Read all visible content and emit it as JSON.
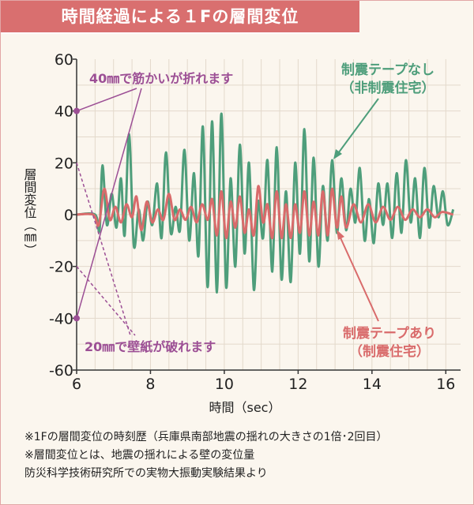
{
  "header": {
    "title": "時間経過による１Fの層間変位"
  },
  "chart_data": {
    "type": "line",
    "title": "時間経過による１Fの層間変位",
    "xlabel": "時間（sec）",
    "ylabel": "層間変位（㎜）",
    "xlim": [
      6,
      16.4
    ],
    "ylim": [
      -60,
      60
    ],
    "x_ticks": [
      "6",
      "8",
      "10",
      "12",
      "14",
      "16"
    ],
    "y_ticks": [
      "60",
      "40",
      "20",
      "0",
      "-20",
      "-40",
      "-60"
    ],
    "grid": true,
    "series": [
      {
        "name": "制震テープなし（非制震住宅）",
        "color": "#4e9e7b",
        "x": [
          6.0,
          6.5,
          6.62,
          6.7,
          6.82,
          6.95,
          7.08,
          7.2,
          7.3,
          7.42,
          7.55,
          7.68,
          7.8,
          7.92,
          8.05,
          8.18,
          8.3,
          8.42,
          8.55,
          8.68,
          8.8,
          8.92,
          9.05,
          9.18,
          9.3,
          9.42,
          9.55,
          9.67,
          9.8,
          9.92,
          10.05,
          10.17,
          10.3,
          10.42,
          10.55,
          10.67,
          10.8,
          10.92,
          11.05,
          11.17,
          11.3,
          11.42,
          11.55,
          11.67,
          11.8,
          11.92,
          12.05,
          12.17,
          12.3,
          12.42,
          12.55,
          12.67,
          12.8,
          12.92,
          13.05,
          13.17,
          13.3,
          13.42,
          13.55,
          13.67,
          13.8,
          13.92,
          14.05,
          14.17,
          14.3,
          14.42,
          14.55,
          14.67,
          14.8,
          14.92,
          15.05,
          15.17,
          15.3,
          15.42,
          15.55,
          15.67,
          15.8,
          15.92,
          16.05,
          16.2
        ],
        "y": [
          0,
          0,
          -6,
          19,
          -4,
          8,
          -5,
          14,
          -8,
          31,
          -12,
          2,
          -10,
          5,
          -4,
          12,
          -9,
          24,
          -7,
          3,
          -6,
          25,
          -10,
          16,
          -16,
          34,
          -28,
          36,
          -30,
          39,
          -28,
          14,
          -20,
          27,
          -15,
          20,
          -29,
          5,
          -9,
          21,
          -22,
          26,
          -25,
          9,
          -26,
          20,
          -15,
          33,
          -18,
          22,
          -20,
          11,
          -10,
          21,
          -7,
          14,
          -6,
          10,
          -3,
          18,
          -10,
          6,
          -11,
          12,
          -4,
          12,
          -9,
          16,
          -7,
          21,
          -3,
          14,
          -9,
          18,
          -5,
          11,
          -1,
          9,
          -4,
          2
        ]
      },
      {
        "name": "制震テープあり（制震住宅）",
        "color": "#d96b6b",
        "x": [
          6.0,
          6.45,
          6.6,
          6.75,
          6.9,
          7.05,
          7.2,
          7.35,
          7.5,
          7.62,
          7.75,
          7.9,
          8.05,
          8.2,
          8.35,
          8.5,
          8.65,
          8.8,
          8.95,
          9.1,
          9.25,
          9.4,
          9.55,
          9.67,
          9.8,
          9.92,
          10.05,
          10.17,
          10.3,
          10.42,
          10.55,
          10.67,
          10.8,
          10.92,
          11.05,
          11.17,
          11.3,
          11.42,
          11.55,
          11.67,
          11.8,
          11.92,
          12.05,
          12.17,
          12.3,
          12.42,
          12.55,
          12.67,
          12.8,
          12.92,
          13.05,
          13.17,
          13.3,
          13.5,
          13.7,
          13.9,
          14.1,
          14.3,
          14.5,
          14.7,
          14.9,
          15.1,
          15.3,
          15.5,
          15.7,
          15.9,
          16.2
        ],
        "y": [
          0,
          0,
          -4,
          10,
          -2,
          3,
          -3,
          4,
          -1,
          7,
          -6,
          5,
          -3,
          2,
          -2,
          8,
          -2,
          2,
          -2,
          3,
          -3,
          4,
          -2,
          6,
          -8,
          9,
          -9,
          5,
          -5,
          7,
          -7,
          2,
          -8,
          11,
          -3,
          4,
          -9,
          9,
          -9,
          4,
          -9,
          4,
          -7,
          9,
          -8,
          5,
          -8,
          9,
          -8,
          10,
          -5,
          7,
          -5,
          4,
          -3,
          4,
          -3,
          3,
          -2,
          3,
          -2,
          2,
          -1,
          2,
          -1,
          1,
          0
        ]
      }
    ],
    "annotations": [
      {
        "text": "40㎜で筋かいが折れます",
        "color": "#9c4f95"
      },
      {
        "text": "20㎜で壁紙が破れます",
        "color": "#9c4f95"
      },
      {
        "text": "制震テープなし",
        "color": "#4e9e7b"
      },
      {
        "text": "（非制震住宅）",
        "color": "#4e9e7b"
      },
      {
        "text": "制震テープあり",
        "color": "#d96b6b"
      },
      {
        "text": "（制震住宅）",
        "color": "#d96b6b"
      }
    ]
  },
  "notes": [
    "※1Fの層間変位の時刻歴（兵庫県南部地震の揺れの大きさの1倍･2回目）",
    "※層間変位とは、地震の揺れによる壁の変位量",
    "防災科学技術研究所での実物大振動実験結果より"
  ]
}
